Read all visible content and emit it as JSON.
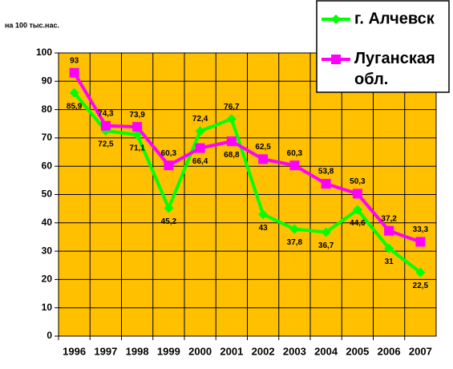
{
  "chart_data": {
    "type": "line",
    "y_label": "на 100 тыс.нас.",
    "categories": [
      "1996",
      "1997",
      "1998",
      "1999",
      "2000",
      "2001",
      "2002",
      "2003",
      "2004",
      "2005",
      "2006",
      "2007"
    ],
    "series": [
      {
        "name": "г. Алчевск",
        "color": "#00ff00",
        "marker": "diamond",
        "values": [
          85.9,
          72.5,
          71.1,
          45.2,
          72.4,
          76.7,
          43,
          37.8,
          36.7,
          44.6,
          31,
          22.5
        ],
        "value_labels": [
          "85,9",
          "72,5",
          "71,1",
          "45,2",
          "72,4",
          "76,7",
          "43",
          "37,8",
          "36,7",
          "44,6",
          "31",
          "22,5"
        ]
      },
      {
        "name": "Луганская обл.",
        "color": "#ff00ff",
        "marker": "square",
        "values": [
          93,
          74.3,
          73.9,
          60.3,
          66.4,
          68.8,
          62.5,
          60.3,
          53.8,
          50.3,
          37.2,
          33.3
        ],
        "value_labels": [
          "93",
          "74,3",
          "73,9",
          "60,3",
          "66,4",
          "68,8",
          "62,5",
          "60,3",
          "53,8",
          "50,3",
          "37,2",
          "33,3"
        ]
      }
    ],
    "ylim": [
      0,
      100
    ],
    "yticks": [
      0,
      10,
      20,
      30,
      40,
      50,
      60,
      70,
      80,
      90,
      100
    ],
    "grid": true,
    "plot_background": "#ffc000",
    "legend": "top-right"
  }
}
